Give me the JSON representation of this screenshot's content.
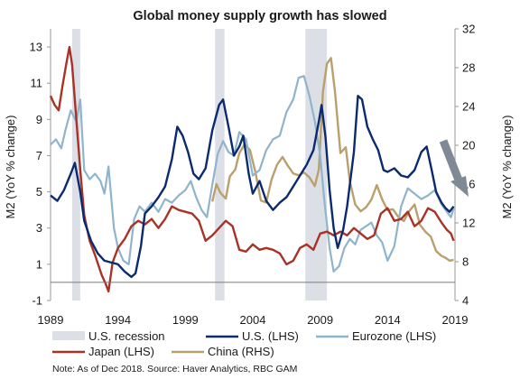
{
  "chart_data": {
    "type": "line",
    "title": "Global money supply growth has slowed",
    "ylabel_left": "M2 (YoY % change)",
    "ylabel_right": "M2 (YoY % change)",
    "x_ticks": [
      "1989",
      "1994",
      "1999",
      "2004",
      "2009",
      "2014",
      "2019"
    ],
    "x_range": [
      1989,
      2019
    ],
    "y_left": {
      "range": [
        -1,
        14
      ],
      "ticks": [
        "13",
        "11",
        "9",
        "7",
        "5",
        "3",
        "1",
        "-1"
      ],
      "tick_values": [
        13,
        11,
        9,
        7,
        5,
        3,
        1,
        -1
      ]
    },
    "y_right": {
      "range": [
        4,
        32
      ],
      "ticks": [
        "32",
        "28",
        "24",
        "20",
        "16",
        "12",
        "8",
        "4"
      ],
      "tick_values": [
        32,
        28,
        24,
        20,
        16,
        12,
        8,
        4
      ]
    },
    "zero_line_left": 0,
    "recessions": [
      [
        1990.6,
        1991.2
      ],
      [
        2001.2,
        2001.9
      ],
      [
        2007.9,
        2009.5
      ]
    ],
    "legend": {
      "recession": "U.S. recession",
      "us": "U.S. (LHS)",
      "eurozone": "Eurozone (LHS)",
      "japan": "Japan (LHS)",
      "china": "China (RHS)"
    },
    "colors": {
      "us": "#0b2a6f",
      "eurozone": "#8fb4cc",
      "japan": "#a83226",
      "china": "#b9a06c",
      "recession": "#dcdfe6",
      "arrow": "#7f8a96"
    },
    "note": "Note: As of Dec 2018. Source: Haver Analytics, RBC GAM",
    "series": [
      {
        "key": "us",
        "name": "U.S. (LHS)",
        "axis": "left",
        "points": [
          [
            1989.0,
            4.8
          ],
          [
            1989.5,
            4.5
          ],
          [
            1990.0,
            5.1
          ],
          [
            1990.5,
            6.0
          ],
          [
            1990.8,
            6.6
          ],
          [
            1991.2,
            5.0
          ],
          [
            1991.5,
            3.4
          ],
          [
            1992.0,
            2.3
          ],
          [
            1992.5,
            1.6
          ],
          [
            1993.0,
            1.2
          ],
          [
            1993.5,
            1.1
          ],
          [
            1994.0,
            1.0
          ],
          [
            1994.5,
            0.6
          ],
          [
            1995.0,
            0.3
          ],
          [
            1995.3,
            0.5
          ],
          [
            1995.7,
            2.0
          ],
          [
            1996.0,
            3.8
          ],
          [
            1996.5,
            4.2
          ],
          [
            1997.0,
            4.7
          ],
          [
            1997.5,
            5.3
          ],
          [
            1998.0,
            6.8
          ],
          [
            1998.4,
            8.6
          ],
          [
            1998.8,
            8.1
          ],
          [
            1999.2,
            7.2
          ],
          [
            1999.6,
            6.0
          ],
          [
            2000.0,
            5.7
          ],
          [
            2000.5,
            6.3
          ],
          [
            2001.0,
            8.4
          ],
          [
            2001.5,
            9.8
          ],
          [
            2001.8,
            10.1
          ],
          [
            2002.2,
            8.6
          ],
          [
            2002.6,
            7.0
          ],
          [
            2003.0,
            7.5
          ],
          [
            2003.3,
            8.1
          ],
          [
            2003.7,
            6.0
          ],
          [
            2004.0,
            4.9
          ],
          [
            2004.5,
            5.6
          ],
          [
            2005.0,
            4.5
          ],
          [
            2005.5,
            4.0
          ],
          [
            2006.0,
            4.4
          ],
          [
            2006.5,
            4.7
          ],
          [
            2007.0,
            5.3
          ],
          [
            2007.5,
            5.9
          ],
          [
            2008.0,
            6.5
          ],
          [
            2008.5,
            7.3
          ],
          [
            2008.9,
            8.9
          ],
          [
            2009.1,
            9.8
          ],
          [
            2009.4,
            8.0
          ],
          [
            2009.7,
            5.1
          ],
          [
            2010.0,
            3.0
          ],
          [
            2010.3,
            1.9
          ],
          [
            2010.7,
            2.9
          ],
          [
            2011.0,
            4.2
          ],
          [
            2011.5,
            7.2
          ],
          [
            2011.8,
            10.3
          ],
          [
            2012.1,
            10.1
          ],
          [
            2012.5,
            8.6
          ],
          [
            2012.9,
            7.9
          ],
          [
            2013.3,
            7.3
          ],
          [
            2013.7,
            6.2
          ],
          [
            2014.0,
            6.1
          ],
          [
            2014.5,
            6.3
          ],
          [
            2015.0,
            5.9
          ],
          [
            2015.5,
            5.8
          ],
          [
            2016.0,
            6.2
          ],
          [
            2016.5,
            7.2
          ],
          [
            2016.9,
            7.5
          ],
          [
            2017.3,
            6.1
          ],
          [
            2017.6,
            5.0
          ],
          [
            2018.0,
            4.4
          ],
          [
            2018.3,
            4.1
          ],
          [
            2018.6,
            3.9
          ],
          [
            2018.9,
            4.2
          ]
        ]
      },
      {
        "key": "eurozone",
        "name": "Eurozone (LHS)",
        "axis": "left",
        "points": [
          [
            1989.0,
            7.6
          ],
          [
            1989.4,
            7.9
          ],
          [
            1989.8,
            7.4
          ],
          [
            1990.1,
            8.4
          ],
          [
            1990.5,
            9.5
          ],
          [
            1990.9,
            8.9
          ],
          [
            1991.2,
            10.1
          ],
          [
            1991.5,
            6.2
          ],
          [
            1991.9,
            5.7
          ],
          [
            1992.3,
            6.0
          ],
          [
            1992.7,
            5.6
          ],
          [
            1993.0,
            4.9
          ],
          [
            1993.3,
            6.4
          ],
          [
            1993.7,
            3.0
          ],
          [
            1994.0,
            1.9
          ],
          [
            1994.4,
            1.2
          ],
          [
            1994.8,
            1.0
          ],
          [
            1995.2,
            3.5
          ],
          [
            1995.6,
            4.2
          ],
          [
            1996.0,
            3.9
          ],
          [
            1996.5,
            4.4
          ],
          [
            1997.0,
            3.9
          ],
          [
            1997.5,
            4.6
          ],
          [
            1998.0,
            4.4
          ],
          [
            1998.5,
            4.8
          ],
          [
            1999.0,
            5.1
          ],
          [
            1999.4,
            5.6
          ],
          [
            1999.8,
            4.7
          ],
          [
            2000.2,
            4.0
          ],
          [
            2000.6,
            3.6
          ],
          [
            2001.0,
            5.4
          ],
          [
            2001.4,
            7.1
          ],
          [
            2001.8,
            7.8
          ],
          [
            2002.2,
            7.2
          ],
          [
            2002.6,
            7.0
          ],
          [
            2003.0,
            8.3
          ],
          [
            2003.5,
            7.9
          ],
          [
            2004.0,
            5.9
          ],
          [
            2004.5,
            6.2
          ],
          [
            2005.0,
            7.3
          ],
          [
            2005.5,
            7.9
          ],
          [
            2006.0,
            8.1
          ],
          [
            2006.5,
            9.4
          ],
          [
            2007.0,
            10.1
          ],
          [
            2007.4,
            11.3
          ],
          [
            2007.8,
            11.4
          ],
          [
            2008.2,
            10.3
          ],
          [
            2008.6,
            8.9
          ],
          [
            2009.0,
            7.0
          ],
          [
            2009.3,
            4.6
          ],
          [
            2009.7,
            1.9
          ],
          [
            2010.0,
            0.6
          ],
          [
            2010.4,
            0.9
          ],
          [
            2010.8,
            1.9
          ],
          [
            2011.2,
            2.4
          ],
          [
            2011.6,
            2.1
          ],
          [
            2012.0,
            2.9
          ],
          [
            2012.4,
            3.1
          ],
          [
            2012.8,
            3.3
          ],
          [
            2013.2,
            2.6
          ],
          [
            2013.6,
            2.2
          ],
          [
            2014.0,
            1.2
          ],
          [
            2014.5,
            2.0
          ],
          [
            2015.0,
            4.2
          ],
          [
            2015.5,
            5.2
          ],
          [
            2016.0,
            4.9
          ],
          [
            2016.5,
            4.6
          ],
          [
            2017.0,
            4.8
          ],
          [
            2017.5,
            5.1
          ],
          [
            2018.0,
            4.3
          ],
          [
            2018.4,
            3.9
          ],
          [
            2018.7,
            3.6
          ],
          [
            2018.9,
            4.1
          ]
        ]
      },
      {
        "key": "japan",
        "name": "Japan (LHS)",
        "axis": "left",
        "points": [
          [
            1989.0,
            10.3
          ],
          [
            1989.3,
            9.8
          ],
          [
            1989.6,
            9.5
          ],
          [
            1989.9,
            10.9
          ],
          [
            1990.2,
            12.2
          ],
          [
            1990.4,
            13.0
          ],
          [
            1990.6,
            12.0
          ],
          [
            1990.9,
            9.1
          ],
          [
            1991.2,
            6.2
          ],
          [
            1991.5,
            3.7
          ],
          [
            1991.9,
            2.3
          ],
          [
            1992.3,
            1.5
          ],
          [
            1992.8,
            0.4
          ],
          [
            1993.1,
            -0.1
          ],
          [
            1993.3,
            -0.5
          ],
          [
            1993.6,
            1.1
          ],
          [
            1994.0,
            1.9
          ],
          [
            1994.5,
            2.4
          ],
          [
            1995.0,
            3.1
          ],
          [
            1995.5,
            3.4
          ],
          [
            1996.0,
            3.2
          ],
          [
            1996.5,
            3.5
          ],
          [
            1997.0,
            3.0
          ],
          [
            1997.5,
            3.5
          ],
          [
            1998.0,
            4.2
          ],
          [
            1998.5,
            4.0
          ],
          [
            1999.0,
            3.9
          ],
          [
            1999.5,
            3.8
          ],
          [
            2000.0,
            3.4
          ],
          [
            2000.5,
            2.3
          ],
          [
            2001.0,
            2.6
          ],
          [
            2001.5,
            3.0
          ],
          [
            2002.0,
            3.4
          ],
          [
            2002.5,
            3.1
          ],
          [
            2003.0,
            1.8
          ],
          [
            2003.5,
            1.7
          ],
          [
            2004.0,
            2.1
          ],
          [
            2004.5,
            1.8
          ],
          [
            2005.0,
            1.9
          ],
          [
            2005.5,
            1.8
          ],
          [
            2006.0,
            1.6
          ],
          [
            2006.5,
            1.0
          ],
          [
            2007.0,
            1.2
          ],
          [
            2007.5,
            1.9
          ],
          [
            2008.0,
            2.1
          ],
          [
            2008.5,
            1.8
          ],
          [
            2009.0,
            2.7
          ],
          [
            2009.5,
            2.8
          ],
          [
            2010.0,
            2.6
          ],
          [
            2010.5,
            2.8
          ],
          [
            2011.0,
            2.6
          ],
          [
            2011.5,
            3.0
          ],
          [
            2012.0,
            2.7
          ],
          [
            2012.5,
            2.4
          ],
          [
            2013.0,
            2.6
          ],
          [
            2013.5,
            3.8
          ],
          [
            2014.0,
            4.1
          ],
          [
            2014.5,
            3.4
          ],
          [
            2015.0,
            3.5
          ],
          [
            2015.5,
            3.9
          ],
          [
            2016.0,
            3.1
          ],
          [
            2016.5,
            3.4
          ],
          [
            2017.0,
            4.1
          ],
          [
            2017.5,
            3.9
          ],
          [
            2018.0,
            3.3
          ],
          [
            2018.4,
            2.9
          ],
          [
            2018.7,
            2.7
          ],
          [
            2018.9,
            2.3
          ]
        ]
      },
      {
        "key": "china",
        "name": "China (RHS)",
        "axis": "right",
        "points": [
          [
            2001.0,
            14.2
          ],
          [
            2001.3,
            16.0
          ],
          [
            2001.6,
            15.1
          ],
          [
            2002.0,
            14.5
          ],
          [
            2002.3,
            16.8
          ],
          [
            2002.7,
            17.5
          ],
          [
            2003.0,
            19.2
          ],
          [
            2003.4,
            20.1
          ],
          [
            2003.8,
            19.5
          ],
          [
            2004.2,
            17.2
          ],
          [
            2004.6,
            14.3
          ],
          [
            2005.0,
            14.1
          ],
          [
            2005.4,
            16.5
          ],
          [
            2005.8,
            18.0
          ],
          [
            2006.2,
            18.8
          ],
          [
            2006.6,
            17.9
          ],
          [
            2007.0,
            17.1
          ],
          [
            2007.4,
            16.9
          ],
          [
            2007.8,
            17.2
          ],
          [
            2008.2,
            16.7
          ],
          [
            2008.6,
            15.8
          ],
          [
            2008.9,
            17.5
          ],
          [
            2009.2,
            25.5
          ],
          [
            2009.5,
            28.4
          ],
          [
            2009.8,
            29.0
          ],
          [
            2010.1,
            25.5
          ],
          [
            2010.5,
            19.2
          ],
          [
            2010.9,
            19.8
          ],
          [
            2011.2,
            16.3
          ],
          [
            2011.6,
            13.9
          ],
          [
            2012.0,
            13.2
          ],
          [
            2012.4,
            13.6
          ],
          [
            2012.8,
            14.4
          ],
          [
            2013.2,
            15.9
          ],
          [
            2013.6,
            14.4
          ],
          [
            2014.0,
            13.3
          ],
          [
            2014.4,
            13.4
          ],
          [
            2014.8,
            12.6
          ],
          [
            2015.2,
            12.2
          ],
          [
            2015.6,
            13.2
          ],
          [
            2016.0,
            13.9
          ],
          [
            2016.4,
            11.8
          ],
          [
            2016.8,
            11.1
          ],
          [
            2017.2,
            10.6
          ],
          [
            2017.6,
            9.1
          ],
          [
            2018.0,
            8.6
          ],
          [
            2018.3,
            8.4
          ],
          [
            2018.6,
            8.1
          ],
          [
            2018.9,
            8.2
          ]
        ]
      }
    ]
  }
}
